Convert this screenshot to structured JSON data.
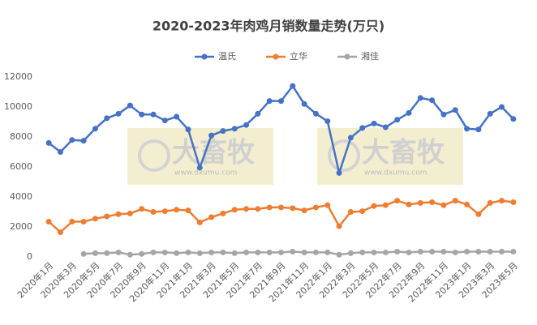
{
  "chart_data": {
    "type": "line",
    "title": "2020-2023年肉鸡月销数量走势(万只)",
    "categories": [
      "2020年1月",
      null,
      "2020年3月",
      null,
      "2020年5月",
      null,
      "2020年7月",
      null,
      "2020年9月",
      null,
      "2020年11月",
      null,
      "2021年1月",
      null,
      "2021年3月",
      null,
      "2021年5月",
      null,
      "2021年7月",
      null,
      "2021年9月",
      null,
      "2021年11月",
      null,
      "2022年1月",
      null,
      "2022年3月",
      null,
      "2022年5月",
      null,
      "2022年7月",
      null,
      "2022年9月",
      null,
      "2022年11月",
      null,
      "2023年1月",
      null,
      "2023年3月",
      null,
      "2023年5月"
    ],
    "series": [
      {
        "name": "温氏",
        "color": "#4472c4",
        "values": [
          7600,
          7000,
          7800,
          7750,
          8550,
          9250,
          9550,
          10100,
          9500,
          9500,
          9100,
          9350,
          8500,
          5950,
          8100,
          8400,
          8550,
          8800,
          9550,
          10400,
          10400,
          11400,
          10200,
          9550,
          9050,
          5600,
          7950,
          8600,
          8900,
          8650,
          9150,
          9600,
          10600,
          10450,
          9500,
          9800,
          8550,
          8500,
          9550,
          10000,
          9200
        ]
      },
      {
        "name": "立华",
        "color": "#ed7d31",
        "values": [
          2350,
          1650,
          2350,
          2350,
          2550,
          2700,
          2850,
          2900,
          3200,
          3000,
          3050,
          3150,
          3100,
          2300,
          2650,
          2900,
          3150,
          3200,
          3200,
          3300,
          3300,
          3250,
          3100,
          3300,
          3450,
          2050,
          3000,
          3050,
          3400,
          3450,
          3750,
          3500,
          3600,
          3650,
          3450,
          3750,
          3500,
          2850,
          3600,
          3750,
          3650
        ]
      },
      {
        "name": "湘佳",
        "color": "#a5a5a5",
        "values": [
          null,
          null,
          null,
          200,
          250,
          250,
          300,
          150,
          200,
          300,
          300,
          250,
          300,
          250,
          300,
          300,
          250,
          300,
          300,
          300,
          300,
          350,
          300,
          300,
          300,
          150,
          250,
          300,
          300,
          300,
          350,
          300,
          350,
          350,
          350,
          300,
          350,
          350,
          350,
          350,
          350
        ]
      }
    ],
    "ylim": [
      0,
      12000
    ],
    "yticks": [
      0,
      2000,
      4000,
      6000,
      8000,
      10000,
      12000
    ],
    "grid": false,
    "legend": "top",
    "watermark": {
      "brand": "大畜牧",
      "url": "www.dxumu.com"
    }
  }
}
